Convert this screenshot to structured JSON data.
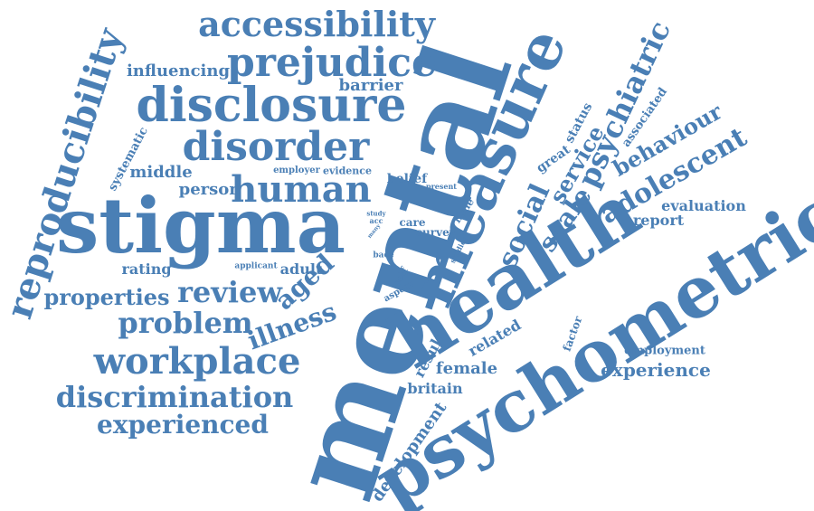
{
  "theme": {
    "word_color": "#4a7fb5",
    "background": "#ffffff"
  },
  "words": [
    "mental",
    "health",
    "psychometric",
    "stigma",
    "measure",
    "disclosure",
    "prejudice",
    "accessibility",
    "reproducibility",
    "disorder",
    "human",
    "workplace",
    "discrimination",
    "review",
    "problem",
    "experienced",
    "illness",
    "aged",
    "properties",
    "social",
    "psychiatric",
    "adolescent",
    "scale",
    "service",
    "behaviour",
    "influencing",
    "barrier",
    "middle",
    "person",
    "systematic",
    "evaluation",
    "report",
    "rating",
    "adult",
    "experience",
    "employment",
    "female",
    "britain",
    "result",
    "related",
    "development",
    "associated",
    "great",
    "status",
    "factor",
    "belief",
    "evidence",
    "employer",
    "applicant",
    "self",
    "aspect",
    "care",
    "survey",
    "male",
    "studies",
    "present",
    "study",
    "acc",
    "many",
    "bace"
  ]
}
